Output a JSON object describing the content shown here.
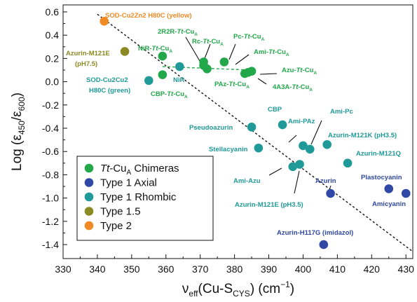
{
  "chart_data": {
    "type": "scatter",
    "xlabel": "νeff(Cu-SCYS) (cm−1)",
    "ylabel": "Log (ε450/ε600)",
    "xlim": [
      330,
      432
    ],
    "ylim": [
      -1.52,
      0.66
    ],
    "xticks": [
      330,
      340,
      350,
      360,
      370,
      380,
      390,
      400,
      410,
      420,
      430
    ],
    "yticks": [
      -1.4,
      -1.2,
      -1.0,
      -0.8,
      -0.6,
      -0.4,
      -0.2,
      0.0,
      0.2,
      0.4,
      0.6
    ],
    "ytick_labels": [
      "-1.4",
      "-1.2",
      "-1.0",
      "-0.8",
      "-0.6",
      "-0.4",
      "-0.2",
      "0.0",
      "0.2",
      "0.4",
      "0.6"
    ],
    "grid": false,
    "legend_position": "bottom-left",
    "colors": {
      "chimera": "#22a84a",
      "axial": "#2f48a6",
      "rhombic": "#1f9a99",
      "type15": "#8b8a22",
      "type2": "#f08a24"
    },
    "series": [
      {
        "name": "Tt-CuA Chimeras",
        "color": "#22a84a",
        "points": [
          {
            "x": 359,
            "y": 0.22,
            "label": "NiR-Tt-CuA"
          },
          {
            "x": 359,
            "y": 0.06
          },
          {
            "x": 371,
            "y": 0.17,
            "label": "2R2R-Tt-CuA"
          },
          {
            "x": 371,
            "y": 0.14
          },
          {
            "x": 372,
            "y": 0.11,
            "label": "Rc-Tt-CuA"
          },
          {
            "x": 377,
            "y": 0.17,
            "label": "Pc-Tt-CuA"
          },
          {
            "x": 383,
            "y": 0.07,
            "label": "PAz-Tt-CuA"
          },
          {
            "x": 384,
            "y": 0.08,
            "label": "4A3A-Tt-CuA"
          },
          {
            "x": 385,
            "y": 0.09,
            "label": "Azu-Tt-CuA"
          }
        ]
      },
      {
        "name": "Type 1 Axial",
        "color": "#2f48a6",
        "points": [
          {
            "x": 406,
            "y": -1.4,
            "label": "Azurin-H117G (imidazol)"
          },
          {
            "x": 408,
            "y": -0.96,
            "label": "Azurin"
          },
          {
            "x": 425,
            "y": -0.92,
            "label": "Plastocyanin"
          },
          {
            "x": 430,
            "y": -0.96,
            "label": "Amicyanin"
          }
        ]
      },
      {
        "name": "Type 1 Rhombic",
        "color": "#1f9a99",
        "points": [
          {
            "x": 355,
            "y": 0.01,
            "label": "SOD-Cu2Cu2 H80C (green)"
          },
          {
            "x": 364,
            "y": 0.13,
            "label": "NiR"
          },
          {
            "x": 385,
            "y": -0.39,
            "label": "Pseudoazurin"
          },
          {
            "x": 387,
            "y": -0.57,
            "label": "Stellacyanin"
          },
          {
            "x": 394,
            "y": -0.37,
            "label": "CBP"
          },
          {
            "x": 397,
            "y": -0.73,
            "label": "Ami-Azu"
          },
          {
            "x": 399,
            "y": -0.71,
            "label": "Azurin-M121E (pH3.5)"
          },
          {
            "x": 400,
            "y": -0.55,
            "label": "Ami-PAz"
          },
          {
            "x": 402,
            "y": -0.58,
            "label": "Ami-Pc"
          },
          {
            "x": 407,
            "y": -0.54,
            "label": "Azurin-M121K (pH3.5)"
          },
          {
            "x": 413,
            "y": -0.7,
            "label": "Azurin-M121Q"
          }
        ]
      },
      {
        "name": "Type 1.5",
        "color": "#8b8a22",
        "points": [
          {
            "x": 348,
            "y": 0.26,
            "label": "Azurin-M121E (pH7.5)"
          }
        ]
      },
      {
        "name": "Type 2",
        "color": "#f08a24",
        "points": [
          {
            "x": 342,
            "y": 0.52,
            "label": "SOD-Cu2Zn2 H80C (yellow)"
          }
        ]
      }
    ],
    "annotations": {
      "type2": "SOD-Cu2Zn2 H80C (yellow)",
      "type15_a": "Azurin-M121E",
      "type15_b": "(pH7.5)",
      "sod_green_a": "SOD-Cu2Cu2",
      "sod_green_b": "H80C (green)",
      "nir": "NiR",
      "nir_tt": "NiR-Tt-CuA",
      "cbp_tt": "CBP-Tt-CuA",
      "r2r2": "2R2R-Tt-CuA",
      "rc": "Rc-Tt-CuA",
      "pc_tt": "Pc-Tt-CuA",
      "ami_tt": "Ami-Tt-CuA",
      "azu_tt": "Azu-Tt-CuA",
      "paz_tt": "PAz-Tt-CuA",
      "a4a3": "4A3A-Tt-CuA",
      "cbp": "CBP",
      "pseudoazurin": "Pseudoazurin",
      "ami_paz": "Ami-PAz",
      "ami_pc": "Ami-Pc",
      "m121k": "Azurin-M121K (pH3.5)",
      "stellacyanin": "Stellacyanin",
      "m121q": "Azurin-M121Q",
      "ami_azu": "Ami-Azu",
      "m121e35": "Azurin-M121E (pH3.5)",
      "azurin": "Azurin",
      "plastocyanin": "Plastocyanin",
      "amicyanin": "Amicyanin",
      "h117g": "Azurin-H117G (imidazol)"
    },
    "legend": [
      {
        "label": "Tt-CuA Chimeras",
        "color": "#22a84a"
      },
      {
        "label": "Type 1 Axial",
        "color": "#2f48a6"
      },
      {
        "label": "Type 1 Rhombic",
        "color": "#1f9a99"
      },
      {
        "label": "Type 1.5",
        "color": "#8b8a22"
      },
      {
        "label": "Type 2",
        "color": "#f08a24"
      }
    ],
    "trend_lines": [
      {
        "from": [
          340,
          0.58
        ],
        "to": [
          432,
          -1.46
        ]
      },
      {
        "from": [
          359,
          0.13
        ],
        "to": [
          385,
          0.1
        ]
      }
    ]
  }
}
